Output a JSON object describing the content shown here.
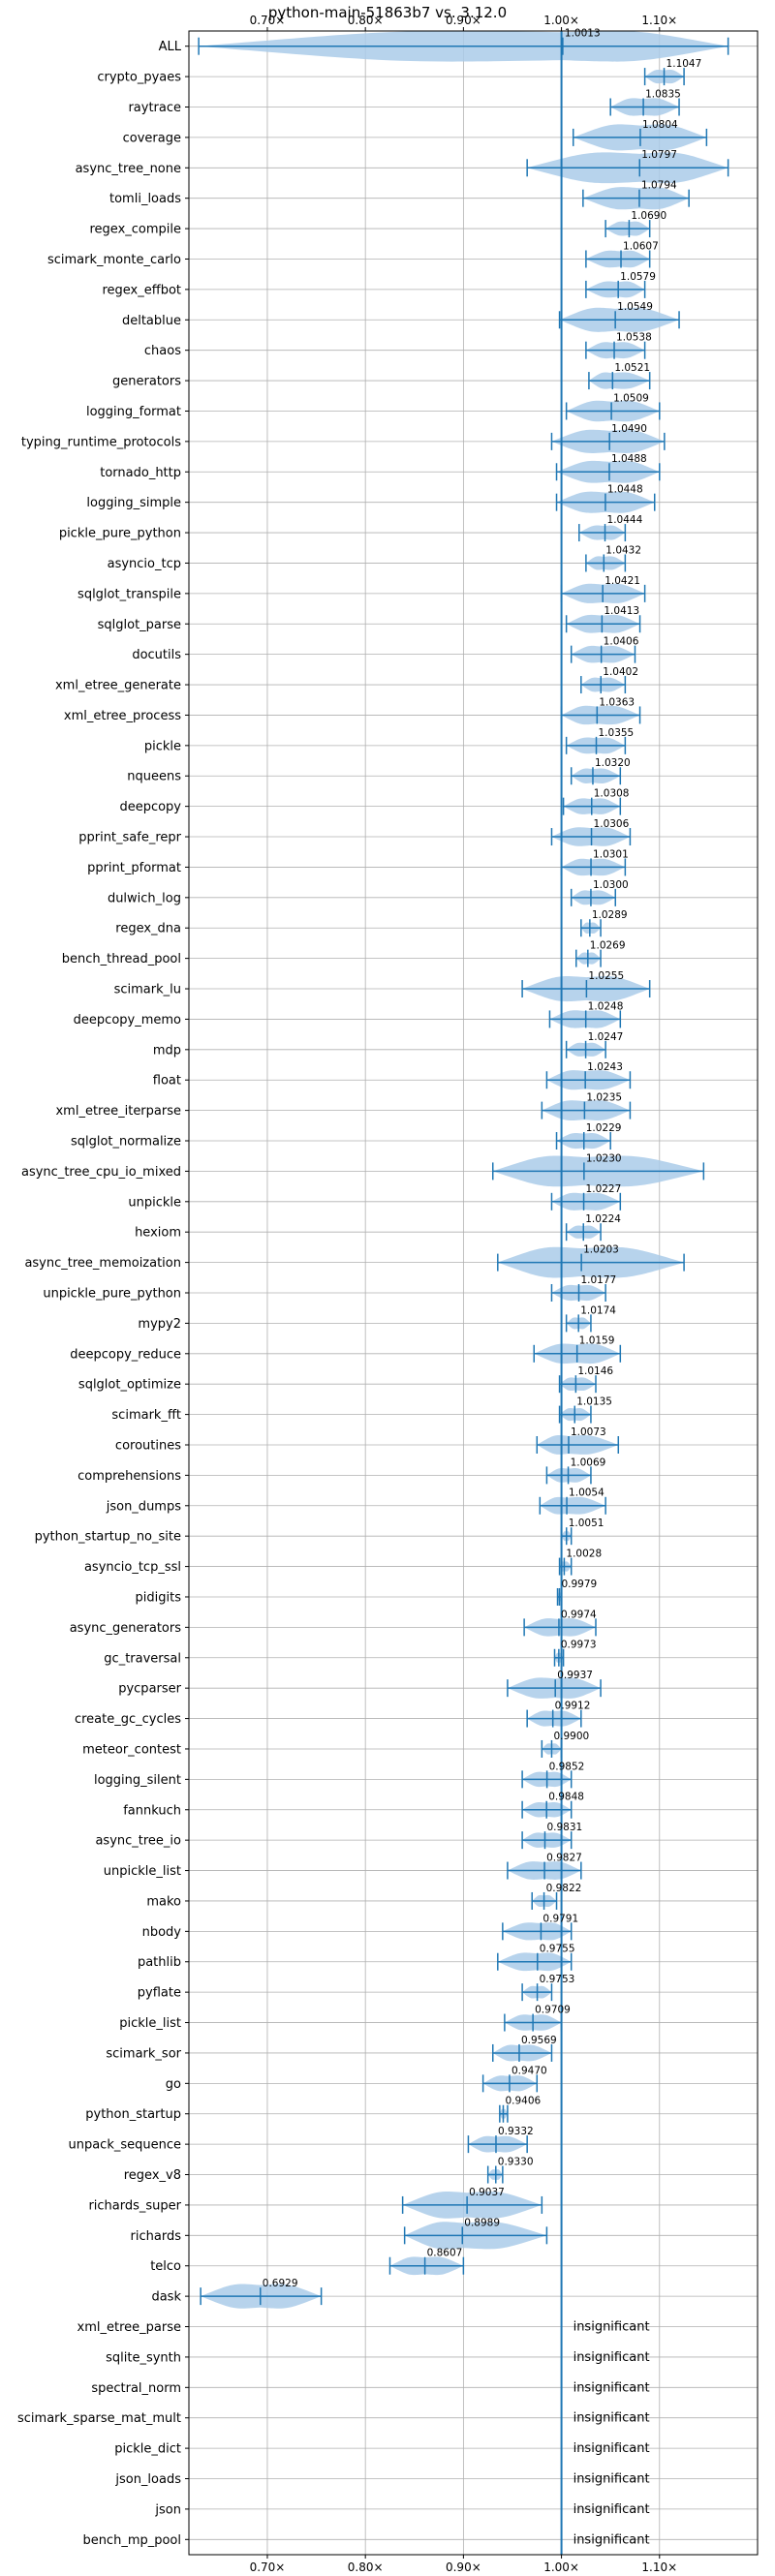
{
  "chart_data": {
    "type": "violin",
    "title": "python-main-51863b7 vs. 3.12.0",
    "xlabel": "",
    "ylabel": "",
    "xlim": [
      0.62,
      1.2
    ],
    "x_ticks": [
      0.7,
      0.8,
      0.9,
      1.0,
      1.1
    ],
    "x_tick_labels": [
      "0.70×",
      "0.80×",
      "0.90×",
      "1.00×",
      "1.10×"
    ],
    "reference_line": 1.0,
    "grid": true,
    "colors": {
      "violin": "#aacbe9",
      "line": "#1f77b4",
      "grid": "#b0b0b0"
    },
    "insignificant_label": "insignificant",
    "benchmarks": [
      {
        "name": "ALL",
        "mean": 1.0013,
        "label": "1.0013",
        "min": 0.63,
        "max": 1.17
      },
      {
        "name": "crypto_pyaes",
        "mean": 1.1047,
        "label": "1.1047",
        "min": 1.085,
        "max": 1.125
      },
      {
        "name": "raytrace",
        "mean": 1.0835,
        "label": "1.0835",
        "min": 1.05,
        "max": 1.12
      },
      {
        "name": "coverage",
        "mean": 1.0804,
        "label": "1.0804",
        "min": 1.012,
        "max": 1.148
      },
      {
        "name": "async_tree_none",
        "mean": 1.0797,
        "label": "1.0797",
        "min": 0.965,
        "max": 1.17
      },
      {
        "name": "tomli_loads",
        "mean": 1.0794,
        "label": "1.0794",
        "min": 1.022,
        "max": 1.13
      },
      {
        "name": "regex_compile",
        "mean": 1.069,
        "label": "1.0690",
        "min": 1.045,
        "max": 1.09
      },
      {
        "name": "scimark_monte_carlo",
        "mean": 1.0607,
        "label": "1.0607",
        "min": 1.025,
        "max": 1.09
      },
      {
        "name": "regex_effbot",
        "mean": 1.0579,
        "label": "1.0579",
        "min": 1.025,
        "max": 1.085
      },
      {
        "name": "deltablue",
        "mean": 1.0549,
        "label": "1.0549",
        "min": 0.998,
        "max": 1.12
      },
      {
        "name": "chaos",
        "mean": 1.0538,
        "label": "1.0538",
        "min": 1.025,
        "max": 1.085
      },
      {
        "name": "generators",
        "mean": 1.0521,
        "label": "1.0521",
        "min": 1.028,
        "max": 1.09
      },
      {
        "name": "logging_format",
        "mean": 1.0509,
        "label": "1.0509",
        "min": 1.005,
        "max": 1.1
      },
      {
        "name": "typing_runtime_protocols",
        "mean": 1.049,
        "label": "1.0490",
        "min": 0.99,
        "max": 1.105
      },
      {
        "name": "tornado_http",
        "mean": 1.0488,
        "label": "1.0488",
        "min": 0.995,
        "max": 1.1
      },
      {
        "name": "logging_simple",
        "mean": 1.0448,
        "label": "1.0448",
        "min": 0.995,
        "max": 1.095
      },
      {
        "name": "pickle_pure_python",
        "mean": 1.0444,
        "label": "1.0444",
        "min": 1.018,
        "max": 1.065
      },
      {
        "name": "asyncio_tcp",
        "mean": 1.0432,
        "label": "1.0432",
        "min": 1.025,
        "max": 1.065
      },
      {
        "name": "sqlglot_transpile",
        "mean": 1.0421,
        "label": "1.0421",
        "min": 1.0,
        "max": 1.085
      },
      {
        "name": "sqlglot_parse",
        "mean": 1.0413,
        "label": "1.0413",
        "min": 1.005,
        "max": 1.08
      },
      {
        "name": "docutils",
        "mean": 1.0406,
        "label": "1.0406",
        "min": 1.01,
        "max": 1.075
      },
      {
        "name": "xml_etree_generate",
        "mean": 1.0402,
        "label": "1.0402",
        "min": 1.02,
        "max": 1.065
      },
      {
        "name": "xml_etree_process",
        "mean": 1.0363,
        "label": "1.0363",
        "min": 1.0,
        "max": 1.08
      },
      {
        "name": "pickle",
        "mean": 1.0355,
        "label": "1.0355",
        "min": 1.005,
        "max": 1.065
      },
      {
        "name": "nqueens",
        "mean": 1.032,
        "label": "1.0320",
        "min": 1.01,
        "max": 1.06
      },
      {
        "name": "deepcopy",
        "mean": 1.0308,
        "label": "1.0308",
        "min": 1.002,
        "max": 1.06
      },
      {
        "name": "pprint_safe_repr",
        "mean": 1.0306,
        "label": "1.0306",
        "min": 0.99,
        "max": 1.07
      },
      {
        "name": "pprint_pformat",
        "mean": 1.0301,
        "label": "1.0301",
        "min": 1.0,
        "max": 1.065
      },
      {
        "name": "dulwich_log",
        "mean": 1.03,
        "label": "1.0300",
        "min": 1.01,
        "max": 1.055
      },
      {
        "name": "regex_dna",
        "mean": 1.0289,
        "label": "1.0289",
        "min": 1.02,
        "max": 1.04
      },
      {
        "name": "bench_thread_pool",
        "mean": 1.0269,
        "label": "1.0269",
        "min": 1.015,
        "max": 1.04
      },
      {
        "name": "scimark_lu",
        "mean": 1.0255,
        "label": "1.0255",
        "min": 0.96,
        "max": 1.09
      },
      {
        "name": "deepcopy_memo",
        "mean": 1.0248,
        "label": "1.0248",
        "min": 0.988,
        "max": 1.06
      },
      {
        "name": "mdp",
        "mean": 1.0247,
        "label": "1.0247",
        "min": 1.005,
        "max": 1.045
      },
      {
        "name": "float",
        "mean": 1.0243,
        "label": "1.0243",
        "min": 0.985,
        "max": 1.07
      },
      {
        "name": "xml_etree_iterparse",
        "mean": 1.0235,
        "label": "1.0235",
        "min": 0.98,
        "max": 1.07
      },
      {
        "name": "sqlglot_normalize",
        "mean": 1.0229,
        "label": "1.0229",
        "min": 0.995,
        "max": 1.05
      },
      {
        "name": "async_tree_cpu_io_mixed",
        "mean": 1.023,
        "label": "1.0230",
        "min": 0.93,
        "max": 1.145
      },
      {
        "name": "unpickle",
        "mean": 1.0227,
        "label": "1.0227",
        "min": 0.99,
        "max": 1.06
      },
      {
        "name": "hexiom",
        "mean": 1.0224,
        "label": "1.0224",
        "min": 1.005,
        "max": 1.04
      },
      {
        "name": "async_tree_memoization",
        "mean": 1.0203,
        "label": "1.0203",
        "min": 0.935,
        "max": 1.125
      },
      {
        "name": "unpickle_pure_python",
        "mean": 1.0177,
        "label": "1.0177",
        "min": 0.99,
        "max": 1.045
      },
      {
        "name": "mypy2",
        "mean": 1.0174,
        "label": "1.0174",
        "min": 1.005,
        "max": 1.03
      },
      {
        "name": "deepcopy_reduce",
        "mean": 1.0159,
        "label": "1.0159",
        "min": 0.972,
        "max": 1.06
      },
      {
        "name": "sqlglot_optimize",
        "mean": 1.0146,
        "label": "1.0146",
        "min": 0.998,
        "max": 1.035
      },
      {
        "name": "scimark_fft",
        "mean": 1.0135,
        "label": "1.0135",
        "min": 0.998,
        "max": 1.03
      },
      {
        "name": "coroutines",
        "mean": 1.0073,
        "label": "1.0073",
        "min": 0.975,
        "max": 1.058
      },
      {
        "name": "comprehensions",
        "mean": 1.0069,
        "label": "1.0069",
        "min": 0.985,
        "max": 1.03
      },
      {
        "name": "json_dumps",
        "mean": 1.0054,
        "label": "1.0054",
        "min": 0.978,
        "max": 1.045
      },
      {
        "name": "python_startup_no_site",
        "mean": 1.0051,
        "label": "1.0051",
        "min": 1.0,
        "max": 1.01
      },
      {
        "name": "asyncio_tcp_ssl",
        "mean": 1.0028,
        "label": "1.0028",
        "min": 0.998,
        "max": 1.01
      },
      {
        "name": "pidigits",
        "mean": 0.9979,
        "label": "0.9979",
        "min": 0.996,
        "max": 1.0
      },
      {
        "name": "async_generators",
        "mean": 0.9974,
        "label": "0.9974",
        "min": 0.962,
        "max": 1.035
      },
      {
        "name": "gc_traversal",
        "mean": 0.9973,
        "label": "0.9973",
        "min": 0.993,
        "max": 1.002
      },
      {
        "name": "pycparser",
        "mean": 0.9937,
        "label": "0.9937",
        "min": 0.945,
        "max": 1.04
      },
      {
        "name": "create_gc_cycles",
        "mean": 0.9912,
        "label": "0.9912",
        "min": 0.965,
        "max": 1.02
      },
      {
        "name": "meteor_contest",
        "mean": 0.99,
        "label": "0.9900",
        "min": 0.98,
        "max": 1.0
      },
      {
        "name": "logging_silent",
        "mean": 0.9852,
        "label": "0.9852",
        "min": 0.96,
        "max": 1.01
      },
      {
        "name": "fannkuch",
        "mean": 0.9848,
        "label": "0.9848",
        "min": 0.96,
        "max": 1.01
      },
      {
        "name": "async_tree_io",
        "mean": 0.9831,
        "label": "0.9831",
        "min": 0.96,
        "max": 1.01
      },
      {
        "name": "unpickle_list",
        "mean": 0.9827,
        "label": "0.9827",
        "min": 0.945,
        "max": 1.02
      },
      {
        "name": "mako",
        "mean": 0.9822,
        "label": "0.9822",
        "min": 0.97,
        "max": 0.995
      },
      {
        "name": "nbody",
        "mean": 0.9791,
        "label": "0.9791",
        "min": 0.94,
        "max": 1.01
      },
      {
        "name": "pathlib",
        "mean": 0.9755,
        "label": "0.9755",
        "min": 0.935,
        "max": 1.01
      },
      {
        "name": "pyflate",
        "mean": 0.9753,
        "label": "0.9753",
        "min": 0.96,
        "max": 0.99
      },
      {
        "name": "pickle_list",
        "mean": 0.9709,
        "label": "0.9709",
        "min": 0.942,
        "max": 1.0
      },
      {
        "name": "scimark_sor",
        "mean": 0.9569,
        "label": "0.9569",
        "min": 0.93,
        "max": 0.99
      },
      {
        "name": "go",
        "mean": 0.947,
        "label": "0.9470",
        "min": 0.92,
        "max": 0.975
      },
      {
        "name": "python_startup",
        "mean": 0.9406,
        "label": "0.9406",
        "min": 0.937,
        "max": 0.945
      },
      {
        "name": "unpack_sequence",
        "mean": 0.9332,
        "label": "0.9332",
        "min": 0.905,
        "max": 0.965
      },
      {
        "name": "regex_v8",
        "mean": 0.933,
        "label": "0.9330",
        "min": 0.925,
        "max": 0.94
      },
      {
        "name": "richards_super",
        "mean": 0.9037,
        "label": "0.9037",
        "min": 0.838,
        "max": 0.98
      },
      {
        "name": "richards",
        "mean": 0.8989,
        "label": "0.8989",
        "min": 0.84,
        "max": 0.985
      },
      {
        "name": "telco",
        "mean": 0.8607,
        "label": "0.8607",
        "min": 0.825,
        "max": 0.9
      },
      {
        "name": "dask",
        "mean": 0.6929,
        "label": "0.6929",
        "min": 0.632,
        "max": 0.755
      },
      {
        "name": "xml_etree_parse",
        "mean": null,
        "label": "insignificant"
      },
      {
        "name": "sqlite_synth",
        "mean": null,
        "label": "insignificant"
      },
      {
        "name": "spectral_norm",
        "mean": null,
        "label": "insignificant"
      },
      {
        "name": "scimark_sparse_mat_mult",
        "mean": null,
        "label": "insignificant"
      },
      {
        "name": "pickle_dict",
        "mean": null,
        "label": "insignificant"
      },
      {
        "name": "json_loads",
        "mean": null,
        "label": "insignificant"
      },
      {
        "name": "json",
        "mean": null,
        "label": "insignificant"
      },
      {
        "name": "bench_mp_pool",
        "mean": null,
        "label": "insignificant"
      }
    ]
  }
}
